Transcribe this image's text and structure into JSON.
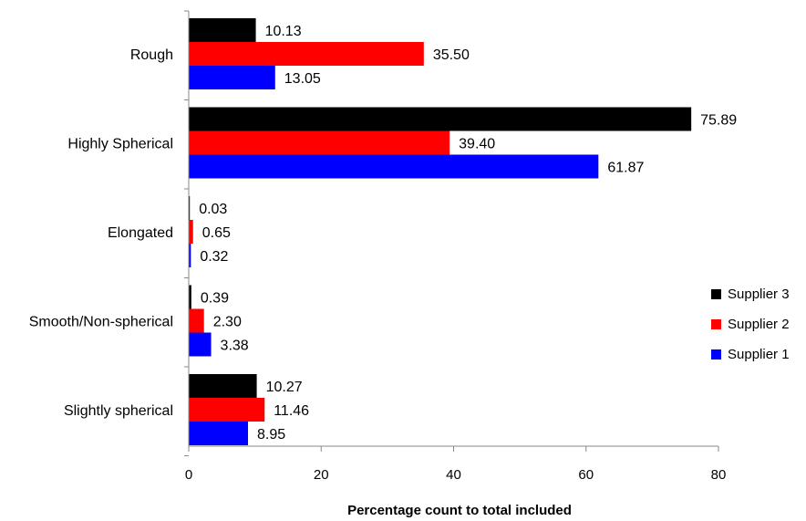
{
  "chart_data": {
    "type": "bar",
    "orientation": "horizontal",
    "categories": [
      "Rough",
      "Highly Spherical",
      "Elongated",
      "Smooth/Non-spherical",
      "Slightly spherical"
    ],
    "series": [
      {
        "name": "Supplier 3",
        "color": "#000000",
        "values": [
          10.13,
          75.89,
          0.03,
          0.39,
          10.27
        ],
        "labels": [
          "10.13",
          "75.89",
          "0.03",
          "0.39",
          "10.27"
        ]
      },
      {
        "name": "Supplier 2",
        "color": "#ff0000",
        "values": [
          35.5,
          39.4,
          0.65,
          2.3,
          11.46
        ],
        "labels": [
          "35.50",
          "39.40",
          "0.65",
          "2.30",
          "11.46"
        ]
      },
      {
        "name": "Supplier 1",
        "color": "#0000ff",
        "values": [
          13.05,
          61.87,
          0.32,
          3.38,
          8.95
        ],
        "labels": [
          "13.05",
          "61.87",
          "0.32",
          "3.38",
          "8.95"
        ]
      }
    ],
    "xlabel": "Percentage count to total included",
    "xlim": [
      0,
      80
    ],
    "xticks": [
      0,
      20,
      40,
      60,
      80
    ],
    "xtick_labels": [
      "0",
      "20",
      "40",
      "60",
      "80"
    ],
    "grid": false,
    "legend_position": "right"
  }
}
